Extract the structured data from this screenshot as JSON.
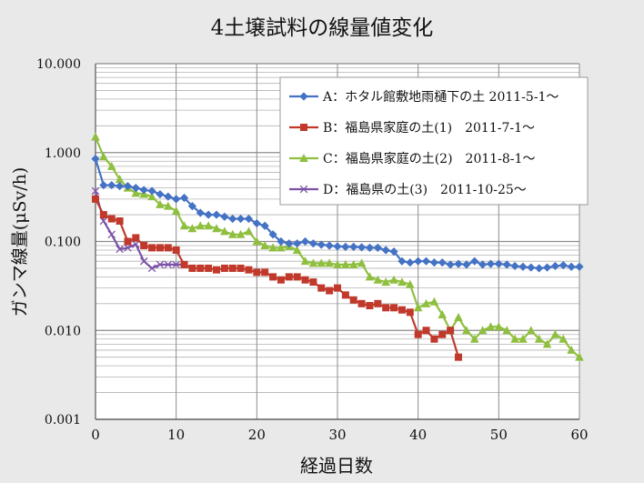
{
  "chart_data": {
    "type": "line",
    "title": "4土壌試料の線量値変化",
    "xlabel": "経過日数",
    "ylabel": "ガンマ線量(μSv/h)",
    "y_scale": "log",
    "ylim": [
      0.001,
      10
    ],
    "xlim": [
      0,
      60
    ],
    "x_ticks": [
      0,
      10,
      20,
      30,
      40,
      50,
      60
    ],
    "y_ticks": [
      0.001,
      0.01,
      0.1,
      1,
      10
    ],
    "x_tick_labels": [
      "0",
      "10",
      "20",
      "30",
      "40",
      "50",
      "60"
    ],
    "y_tick_labels": [
      "0.001",
      "0.010",
      "0.100",
      "1.000",
      "10.000"
    ],
    "grid": true,
    "legend_position": "top-right",
    "series": [
      {
        "name": "A：ホタル館敷地雨樋下の土 2011-5-1～",
        "color": "#4472c4",
        "marker": "diamond",
        "points": [
          [
            0,
            0.85
          ],
          [
            1,
            0.43
          ],
          [
            2,
            0.43
          ],
          [
            3,
            0.42
          ],
          [
            4,
            0.42
          ],
          [
            5,
            0.4
          ],
          [
            6,
            0.38
          ],
          [
            7,
            0.37
          ],
          [
            8,
            0.34
          ],
          [
            9,
            0.32
          ],
          [
            10,
            0.3
          ],
          [
            11,
            0.31
          ],
          [
            12,
            0.25
          ],
          [
            13,
            0.21
          ],
          [
            14,
            0.2
          ],
          [
            15,
            0.2
          ],
          [
            16,
            0.19
          ],
          [
            17,
            0.18
          ],
          [
            18,
            0.18
          ],
          [
            19,
            0.18
          ],
          [
            20,
            0.16
          ],
          [
            21,
            0.15
          ],
          [
            22,
            0.12
          ],
          [
            23,
            0.1
          ],
          [
            24,
            0.095
          ],
          [
            25,
            0.095
          ],
          [
            26,
            0.1
          ],
          [
            27,
            0.095
          ],
          [
            28,
            0.092
          ],
          [
            29,
            0.09
          ],
          [
            30,
            0.088
          ],
          [
            31,
            0.087
          ],
          [
            32,
            0.087
          ],
          [
            33,
            0.086
          ],
          [
            34,
            0.085
          ],
          [
            35,
            0.085
          ],
          [
            36,
            0.08
          ],
          [
            37,
            0.077
          ],
          [
            38,
            0.06
          ],
          [
            39,
            0.058
          ],
          [
            40,
            0.06
          ],
          [
            41,
            0.06
          ],
          [
            42,
            0.058
          ],
          [
            43,
            0.058
          ],
          [
            44,
            0.055
          ],
          [
            45,
            0.056
          ],
          [
            46,
            0.055
          ],
          [
            47,
            0.06
          ],
          [
            48,
            0.055
          ],
          [
            49,
            0.056
          ],
          [
            50,
            0.056
          ],
          [
            51,
            0.055
          ],
          [
            52,
            0.053
          ],
          [
            53,
            0.052
          ],
          [
            54,
            0.051
          ],
          [
            55,
            0.05
          ],
          [
            56,
            0.051
          ],
          [
            57,
            0.053
          ],
          [
            58,
            0.054
          ],
          [
            59,
            0.052
          ],
          [
            60,
            0.052
          ]
        ]
      },
      {
        "name": "B：福島県家庭の土(1)　2011-7-1～",
        "color": "#c0392b",
        "marker": "square",
        "points": [
          [
            0,
            0.3
          ],
          [
            1,
            0.2
          ],
          [
            2,
            0.18
          ],
          [
            3,
            0.17
          ],
          [
            4,
            0.1
          ],
          [
            5,
            0.11
          ],
          [
            6,
            0.09
          ],
          [
            7,
            0.085
          ],
          [
            8,
            0.085
          ],
          [
            9,
            0.085
          ],
          [
            10,
            0.08
          ],
          [
            11,
            0.055
          ],
          [
            12,
            0.05
          ],
          [
            13,
            0.05
          ],
          [
            14,
            0.05
          ],
          [
            15,
            0.048
          ],
          [
            16,
            0.05
          ],
          [
            17,
            0.05
          ],
          [
            18,
            0.05
          ],
          [
            19,
            0.048
          ],
          [
            20,
            0.045
          ],
          [
            21,
            0.045
          ],
          [
            22,
            0.04
          ],
          [
            23,
            0.037
          ],
          [
            24,
            0.04
          ],
          [
            25,
            0.04
          ],
          [
            26,
            0.037
          ],
          [
            27,
            0.035
          ],
          [
            28,
            0.03
          ],
          [
            29,
            0.028
          ],
          [
            30,
            0.03
          ],
          [
            31,
            0.025
          ],
          [
            32,
            0.022
          ],
          [
            33,
            0.02
          ],
          [
            34,
            0.019
          ],
          [
            35,
            0.02
          ],
          [
            36,
            0.018
          ],
          [
            37,
            0.018
          ],
          [
            38,
            0.017
          ],
          [
            39,
            0.016
          ],
          [
            40,
            0.009
          ],
          [
            41,
            0.01
          ],
          [
            42,
            0.008
          ],
          [
            43,
            0.009
          ],
          [
            44,
            0.01
          ],
          [
            45,
            0.005
          ]
        ]
      },
      {
        "name": "C：福島県家庭の土(2)　2011-8-1～",
        "color": "#8fbf3f",
        "marker": "triangle",
        "points": [
          [
            0,
            1.5
          ],
          [
            1,
            0.9
          ],
          [
            2,
            0.7
          ],
          [
            3,
            0.5
          ],
          [
            4,
            0.4
          ],
          [
            5,
            0.35
          ],
          [
            6,
            0.34
          ],
          [
            7,
            0.32
          ],
          [
            8,
            0.26
          ],
          [
            9,
            0.25
          ],
          [
            10,
            0.22
          ],
          [
            11,
            0.15
          ],
          [
            12,
            0.14
          ],
          [
            13,
            0.15
          ],
          [
            14,
            0.15
          ],
          [
            15,
            0.14
          ],
          [
            16,
            0.13
          ],
          [
            17,
            0.12
          ],
          [
            18,
            0.12
          ],
          [
            19,
            0.13
          ],
          [
            20,
            0.1
          ],
          [
            21,
            0.09
          ],
          [
            22,
            0.085
          ],
          [
            23,
            0.085
          ],
          [
            24,
            0.088
          ],
          [
            25,
            0.08
          ],
          [
            26,
            0.06
          ],
          [
            27,
            0.057
          ],
          [
            28,
            0.057
          ],
          [
            29,
            0.057
          ],
          [
            30,
            0.055
          ],
          [
            31,
            0.055
          ],
          [
            32,
            0.055
          ],
          [
            33,
            0.057
          ],
          [
            34,
            0.04
          ],
          [
            35,
            0.037
          ],
          [
            36,
            0.035
          ],
          [
            37,
            0.037
          ],
          [
            38,
            0.035
          ],
          [
            39,
            0.033
          ],
          [
            40,
            0.018
          ],
          [
            41,
            0.02
          ],
          [
            42,
            0.021
          ],
          [
            43,
            0.015
          ],
          [
            44,
            0.01
          ],
          [
            45,
            0.014
          ],
          [
            46,
            0.01
          ],
          [
            47,
            0.008
          ],
          [
            48,
            0.01
          ],
          [
            49,
            0.011
          ],
          [
            50,
            0.011
          ],
          [
            51,
            0.01
          ],
          [
            52,
            0.008
          ],
          [
            53,
            0.008
          ],
          [
            54,
            0.01
          ],
          [
            55,
            0.008
          ],
          [
            56,
            0.007
          ],
          [
            57,
            0.009
          ],
          [
            58,
            0.008
          ],
          [
            59,
            0.006
          ],
          [
            60,
            0.005
          ]
        ]
      },
      {
        "name": "D：福島県の土(3)　2011-10-25～",
        "color": "#7b52a8",
        "marker": "x",
        "points": [
          [
            0,
            0.37
          ],
          [
            1,
            0.17
          ],
          [
            2,
            0.12
          ],
          [
            3,
            0.082
          ],
          [
            4,
            0.085
          ],
          [
            5,
            0.093
          ],
          [
            6,
            0.06
          ],
          [
            7,
            0.05
          ],
          [
            8,
            0.055
          ],
          [
            9,
            0.055
          ],
          [
            10,
            0.055
          ],
          [
            11,
            0.055
          ]
        ]
      }
    ]
  }
}
